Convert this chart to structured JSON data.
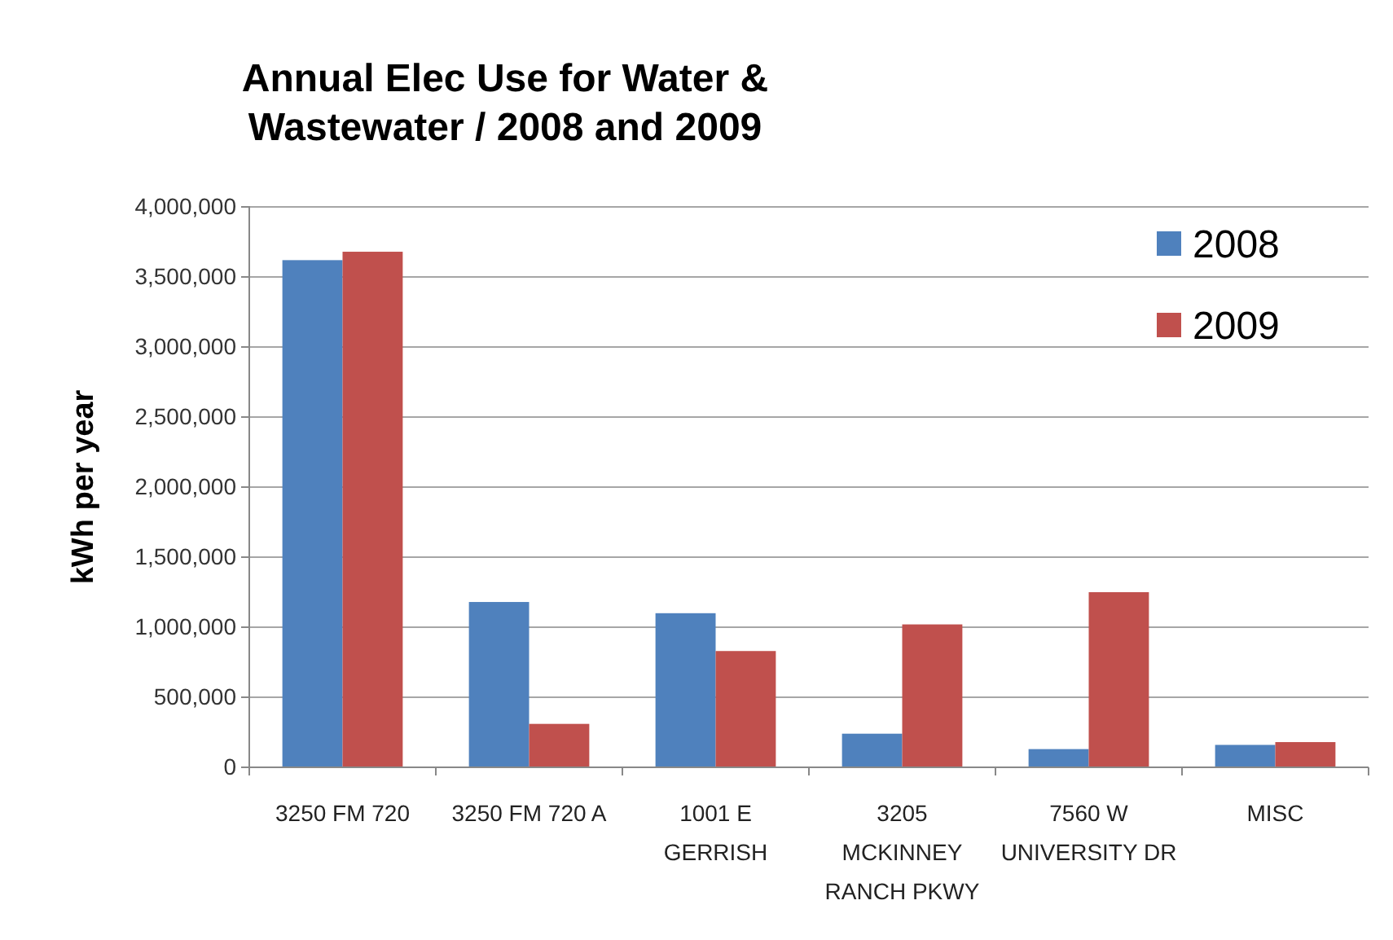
{
  "chart_data": {
    "type": "bar",
    "title": "Annual Elec Use for Water & Wastewater / 2008 and 2009",
    "ylabel": "kWh per year",
    "categories": [
      "3250 FM 720",
      "3250 FM 720 A",
      "1001 E GERRISH",
      "3205 MCKINNEY RANCH PKWY",
      "7560 W UNIVERSITY DR",
      "MISC"
    ],
    "series": [
      {
        "name": "2008",
        "color": "#4f81bd",
        "values": [
          3620000,
          1180000,
          1100000,
          240000,
          130000,
          160000
        ]
      },
      {
        "name": "2009",
        "color": "#c0504d",
        "values": [
          3680000,
          310000,
          830000,
          1020000,
          1250000,
          180000
        ]
      }
    ],
    "ylim": [
      0,
      4000000
    ],
    "yticks": [
      {
        "value": 0,
        "label": "0"
      },
      {
        "value": 500000,
        "label": "500,000"
      },
      {
        "value": 1000000,
        "label": "1,000,000"
      },
      {
        "value": 1500000,
        "label": "1,500,000"
      },
      {
        "value": 2000000,
        "label": "2,000,000"
      },
      {
        "value": 2500000,
        "label": "2,500,000"
      },
      {
        "value": 3000000,
        "label": "3,000,000"
      },
      {
        "value": 3500000,
        "label": "3,500,000"
      },
      {
        "value": 4000000,
        "label": "4,000,000"
      }
    ],
    "grid": "y",
    "legend": "top right"
  }
}
